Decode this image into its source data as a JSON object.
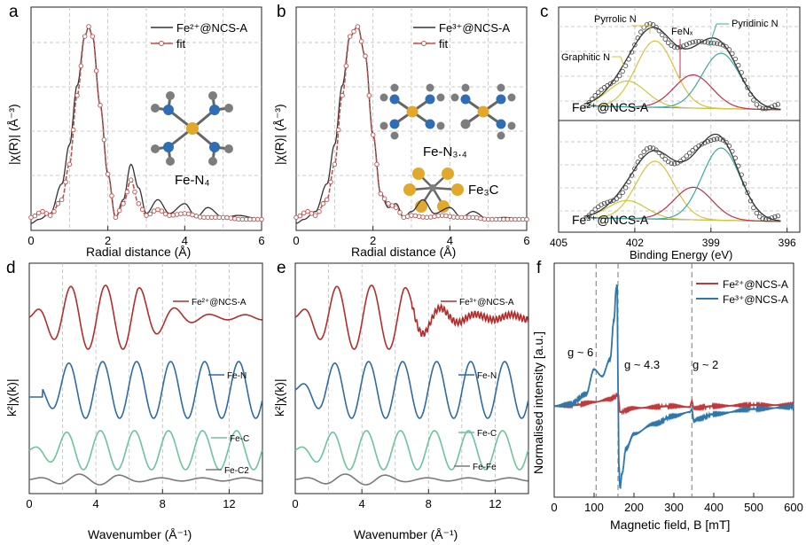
{
  "figure": {
    "panel_letters": [
      "a",
      "b",
      "c",
      "d",
      "e",
      "f"
    ]
  },
  "chart_data": [
    {
      "panel": "a",
      "type": "line",
      "xlabel": "Radial distance (Å)",
      "ylabel": "|χ(R)| (Å⁻³)",
      "xlim": [
        0,
        6
      ],
      "xticks": [
        0,
        2,
        4,
        6
      ],
      "legend": [
        "Fe²⁺@NCS-A",
        "fit"
      ],
      "structure_label": "Fe-N₄",
      "series": [
        {
          "name": "Fe²⁺@NCS-A",
          "color": "#333333",
          "x": [
            0,
            0.2,
            0.5,
            0.8,
            1.0,
            1.2,
            1.4,
            1.5,
            1.6,
            1.8,
            2.0,
            2.2,
            2.4,
            2.6,
            2.8,
            3.0,
            3.3,
            3.6,
            4.0,
            4.3,
            4.6,
            5.0,
            5.4,
            6.0
          ],
          "y": [
            0.0,
            0.02,
            0.05,
            0.2,
            0.4,
            0.7,
            0.95,
            1.0,
            0.95,
            0.6,
            0.25,
            0.03,
            0.12,
            0.3,
            0.18,
            0.05,
            0.12,
            0.05,
            0.1,
            0.03,
            0.08,
            0.03,
            0.04,
            0.02
          ]
        },
        {
          "name": "fit",
          "color": "#c0504d",
          "x": [
            0,
            0.3,
            0.5,
            0.8,
            1.0,
            1.2,
            1.4,
            1.5,
            1.6,
            1.8,
            2.0,
            2.2,
            2.4,
            2.6,
            2.8,
            3.0,
            3.3,
            3.6,
            4.0,
            4.5,
            5.0,
            5.5,
            6.0
          ],
          "y": [
            0.03,
            0.06,
            0.04,
            0.12,
            0.3,
            0.65,
            0.95,
            1.0,
            0.95,
            0.6,
            0.25,
            0.03,
            0.1,
            0.22,
            0.1,
            0.04,
            0.07,
            0.04,
            0.05,
            0.03,
            0.03,
            0.02,
            0.02
          ]
        }
      ]
    },
    {
      "panel": "b",
      "type": "line",
      "xlabel": "Radial distance (Å)",
      "ylabel": "|χ(R)| (Å⁻³)",
      "xlim": [
        0,
        6
      ],
      "xticks": [
        0,
        2,
        4,
        6
      ],
      "legend": [
        "Fe³⁺@NCS-A",
        "fit"
      ],
      "structure_labels": [
        "Fe-N₃.₄",
        "Fe₃C"
      ],
      "series": [
        {
          "name": "Fe³⁺@NCS-A",
          "color": "#333333",
          "x": [
            0,
            0.2,
            0.5,
            0.8,
            1.0,
            1.2,
            1.4,
            1.6,
            1.8,
            2.0,
            2.2,
            2.4,
            2.6,
            2.8,
            3.0,
            3.3,
            3.6,
            4.0,
            4.3,
            4.6,
            5.0,
            5.4,
            6.0
          ],
          "y": [
            0.0,
            0.02,
            0.06,
            0.2,
            0.4,
            0.7,
            0.95,
            1.0,
            0.85,
            0.45,
            0.15,
            0.08,
            0.1,
            0.03,
            0.06,
            0.12,
            0.05,
            0.08,
            0.03,
            0.06,
            0.02,
            0.03,
            0.02
          ]
        },
        {
          "name": "fit",
          "color": "#c0504d",
          "x": [
            0,
            0.3,
            0.5,
            0.8,
            1.0,
            1.2,
            1.4,
            1.6,
            1.8,
            2.0,
            2.2,
            2.4,
            2.6,
            2.8,
            3.0,
            3.4,
            3.8,
            4.2,
            4.6,
            5.0,
            5.5,
            6.0
          ],
          "y": [
            0.03,
            0.06,
            0.04,
            0.12,
            0.3,
            0.65,
            0.95,
            1.0,
            0.85,
            0.45,
            0.15,
            0.1,
            0.08,
            0.03,
            0.04,
            0.03,
            0.04,
            0.03,
            0.03,
            0.02,
            0.02,
            0.02
          ]
        }
      ]
    },
    {
      "panel": "c",
      "type": "scatter",
      "xlabel": "Binding Energy (eV)",
      "xlim": [
        405,
        395.5
      ],
      "xticks": [
        405,
        402,
        399,
        396
      ],
      "peak_labels": [
        "Pyrrolic N",
        "Pyridinic N",
        "Graphitic N",
        "FeNₓ"
      ],
      "subplots": [
        {
          "sample": "Fe²⁺@NCS-A",
          "peaks": [
            {
              "name": "Graphitic N",
              "center": 402.3,
              "height": 0.35,
              "color": "#c9c93a"
            },
            {
              "name": "Pyrrolic N",
              "center": 401.2,
              "height": 0.9,
              "color": "#d9c23c"
            },
            {
              "name": "FeNₓ",
              "center": 399.7,
              "height": 0.45,
              "color": "#c0304a"
            },
            {
              "name": "Pyridinic N",
              "center": 398.6,
              "height": 0.75,
              "color": "#3aa9a0"
            }
          ]
        },
        {
          "sample": "Fe³⁺@NCS-A",
          "peaks": [
            {
              "name": "Graphitic N",
              "center": 402.3,
              "height": 0.25,
              "color": "#c9c93a"
            },
            {
              "name": "Pyrrolic N",
              "center": 401.2,
              "height": 0.8,
              "color": "#d9c23c"
            },
            {
              "name": "FeNₓ",
              "center": 399.7,
              "height": 0.45,
              "color": "#c0304a"
            },
            {
              "name": "Pyridinic N",
              "center": 398.6,
              "height": 1.0,
              "color": "#3aa9a0"
            }
          ]
        }
      ]
    },
    {
      "panel": "d",
      "type": "line",
      "xlabel": "Wavenumber (Å⁻¹)",
      "ylabel": "k²|χ(k)|",
      "xlim": [
        0,
        14
      ],
      "xticks": [
        0,
        4,
        8,
        12
      ],
      "series": [
        {
          "name": "Fe²⁺@NCS-A",
          "color": "#b32d2d"
        },
        {
          "name": "Fe-N",
          "color": "#2e6aa8"
        },
        {
          "name": "Fe-C",
          "color": "#6cc49a"
        },
        {
          "name": "Fe-C2",
          "color": "#7a7a7a"
        }
      ]
    },
    {
      "panel": "e",
      "type": "line",
      "xlabel": "Wavenumber (Å⁻¹)",
      "ylabel": "k²|χ(k)|",
      "xlim": [
        0,
        14
      ],
      "xticks": [
        0,
        4,
        8,
        12
      ],
      "series": [
        {
          "name": "Fe³⁺@NCS-A",
          "color": "#b32d2d"
        },
        {
          "name": "Fe-N",
          "color": "#2e6aa8"
        },
        {
          "name": "Fe-C",
          "color": "#6cc49a"
        },
        {
          "name": "Fe-Fe",
          "color": "#7a7a7a"
        }
      ]
    },
    {
      "panel": "f",
      "type": "line",
      "xlabel": "Magnetic field, B [mT]",
      "ylabel": "Normalised intensity [a.u.]",
      "xlim": [
        0,
        600
      ],
      "xticks": [
        0,
        100,
        200,
        300,
        400,
        500,
        600
      ],
      "ylim": [
        -1.0,
        1.3
      ],
      "annotations": [
        "g ~ 6",
        "g ~ 4.3",
        "g ~ 2"
      ],
      "reference_lines": [
        105,
        160,
        345
      ],
      "series": [
        {
          "name": "Fe²⁺@NCS-A",
          "color": "#c0393b",
          "x": [
            0,
            50,
            100,
            140,
            155,
            160,
            165,
            200,
            300,
            340,
            345,
            350,
            400,
            500,
            600
          ],
          "y": [
            -0.02,
            -0.01,
            0.02,
            0.05,
            0.08,
            0.1,
            -0.08,
            -0.04,
            -0.02,
            -0.03,
            0.03,
            -0.04,
            -0.02,
            -0.01,
            -0.01
          ]
        },
        {
          "name": "Fe³⁺@NCS-A",
          "color": "#2f77a8",
          "x": [
            0,
            40,
            80,
            100,
            120,
            140,
            150,
            155,
            158,
            160,
            162,
            165,
            170,
            180,
            200,
            250,
            300,
            340,
            345,
            350,
            360,
            400,
            500,
            600
          ],
          "y": [
            -0.02,
            0.0,
            0.1,
            0.35,
            0.28,
            0.45,
            0.85,
            1.15,
            1.2,
            0.2,
            -0.6,
            -0.85,
            -0.7,
            -0.45,
            -0.3,
            -0.2,
            -0.12,
            -0.08,
            -0.05,
            -0.17,
            -0.15,
            -0.1,
            -0.05,
            -0.03
          ]
        }
      ]
    }
  ]
}
